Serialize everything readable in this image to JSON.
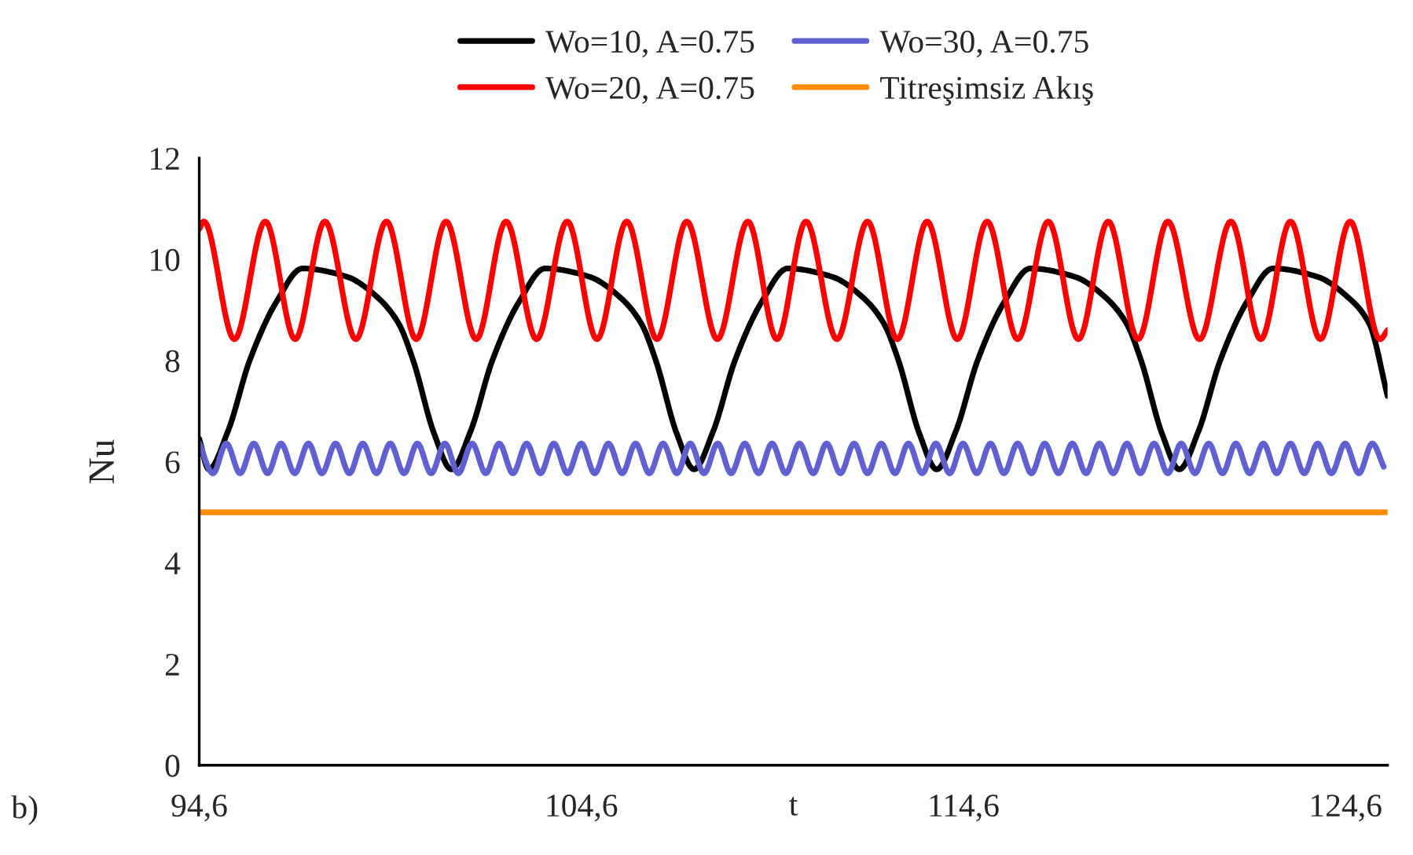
{
  "chart_data": {
    "type": "line",
    "xlabel": "t",
    "ylabel": "Nu",
    "annotations": [
      "b)"
    ],
    "xlim": [
      94.6,
      125.7
    ],
    "xticks": [
      {
        "value": 94.6,
        "label": "94,6"
      },
      {
        "value": 104.6,
        "label": "104,6"
      },
      {
        "value": 114.6,
        "label": "114,6"
      },
      {
        "value": 124.6,
        "label": "124,6"
      }
    ],
    "ylim": [
      0,
      12
    ],
    "yticks": [
      0,
      2,
      4,
      6,
      8,
      10,
      12
    ],
    "grid": false,
    "legend": "top",
    "marker": "none",
    "line_style": "solid",
    "series": [
      {
        "name": "Wo=10, A=0.75",
        "color": "#000000",
        "x": [
          94.6,
          94.85,
          95.35,
          95.92,
          96.62,
          97.3,
          98.45,
          99.25,
          99.82,
          100.2,
          100.75,
          101.2,
          101.7,
          102.27,
          102.97,
          103.65,
          104.8,
          105.6,
          106.17,
          106.55,
          107.1,
          107.55,
          108.05,
          108.62,
          109.32,
          110.0,
          111.15,
          111.95,
          112.52,
          112.9,
          113.45,
          113.9,
          114.4,
          114.97,
          115.67,
          116.35,
          117.5,
          118.3,
          118.87,
          119.25,
          119.8,
          120.25,
          120.75,
          121.32,
          122.02,
          122.7,
          123.85,
          124.65,
          125.22,
          125.7
        ],
        "values": [
          6.45,
          5.85,
          6.6,
          8.0,
          9.16,
          9.82,
          9.66,
          9.26,
          8.73,
          8.0,
          6.55,
          5.85,
          6.6,
          8.0,
          9.16,
          9.82,
          9.66,
          9.26,
          8.73,
          8.0,
          6.55,
          5.85,
          6.6,
          8.0,
          9.16,
          9.82,
          9.66,
          9.26,
          8.73,
          8.0,
          6.55,
          5.85,
          6.6,
          8.0,
          9.16,
          9.82,
          9.66,
          9.26,
          8.73,
          8.0,
          6.55,
          5.85,
          6.6,
          8.0,
          9.16,
          9.82,
          9.66,
          9.26,
          8.73,
          7.3
        ]
      },
      {
        "name": "Wo=20, A=0.75",
        "color": "#ff0000",
        "x": [
          94.6,
          94.72,
          95.52,
          96.33,
          97.11,
          97.89,
          98.7,
          99.5,
          100.28,
          101.06,
          101.85,
          102.63,
          103.43,
          104.23,
          105.01,
          105.79,
          106.58,
          107.36,
          108.16,
          108.96,
          109.72,
          110.48,
          111.29,
          112.09,
          112.87,
          113.65,
          114.44,
          115.22,
          116.02,
          116.82,
          117.61,
          118.39,
          119.17,
          119.95,
          120.78,
          121.6,
          122.38,
          123.16,
          123.94,
          124.72,
          125.5,
          125.7
        ],
        "values": [
          10.6,
          10.75,
          8.42,
          10.75,
          8.42,
          10.75,
          8.42,
          10.75,
          8.42,
          10.75,
          8.42,
          10.75,
          8.42,
          10.75,
          8.42,
          10.75,
          8.42,
          10.75,
          8.42,
          10.75,
          8.42,
          10.75,
          8.42,
          10.75,
          8.42,
          10.75,
          8.42,
          10.75,
          8.42,
          10.75,
          8.42,
          10.75,
          8.42,
          10.75,
          8.42,
          10.75,
          8.42,
          10.75,
          8.42,
          10.75,
          8.42,
          8.6
        ]
      },
      {
        "name": "Wo=30, A=0.75",
        "color": "#6060d0",
        "x": [
          94.6,
          94.96,
          95.31,
          95.67,
          96.03,
          96.39,
          96.74,
          97.1,
          97.46,
          97.81,
          98.17,
          98.53,
          98.88,
          99.24,
          99.6,
          99.96,
          100.31,
          100.67,
          101.03,
          101.38,
          101.74,
          102.1,
          102.45,
          102.81,
          103.17,
          103.53,
          103.88,
          104.24,
          104.6,
          104.95,
          105.31,
          105.67,
          106.02,
          106.38,
          106.74,
          107.1,
          107.45,
          107.81,
          108.17,
          108.52,
          108.88,
          109.24,
          109.59,
          109.95,
          110.31,
          110.67,
          111.02,
          111.38,
          111.74,
          112.09,
          112.45,
          112.81,
          113.16,
          113.52,
          113.88,
          114.24,
          114.59,
          114.95,
          115.31,
          115.66,
          116.02,
          116.38,
          116.73,
          117.09,
          117.45,
          117.81,
          118.16,
          118.52,
          118.88,
          119.23,
          119.59,
          119.95,
          120.3,
          120.66,
          121.02,
          121.38,
          121.73,
          122.09,
          122.45,
          122.8,
          123.16,
          123.52,
          123.87,
          124.23,
          124.59,
          124.95,
          125.3,
          125.6
        ],
        "values": [
          6.36,
          5.77,
          6.36,
          5.77,
          6.36,
          5.77,
          6.36,
          5.77,
          6.36,
          5.77,
          6.36,
          5.77,
          6.36,
          5.77,
          6.36,
          5.77,
          6.36,
          5.77,
          6.36,
          5.77,
          6.36,
          5.77,
          6.36,
          5.77,
          6.36,
          5.77,
          6.36,
          5.77,
          6.36,
          5.77,
          6.36,
          5.77,
          6.36,
          5.77,
          6.36,
          5.77,
          6.36,
          5.77,
          6.36,
          5.77,
          6.36,
          5.77,
          6.36,
          5.77,
          6.36,
          5.77,
          6.36,
          5.77,
          6.36,
          5.77,
          6.36,
          5.77,
          6.36,
          5.77,
          6.36,
          5.77,
          6.36,
          5.77,
          6.36,
          5.77,
          6.36,
          5.77,
          6.36,
          5.77,
          6.36,
          5.77,
          6.36,
          5.77,
          6.36,
          5.77,
          6.36,
          5.77,
          6.36,
          5.77,
          6.36,
          5.77,
          6.36,
          5.77,
          6.36,
          5.77,
          6.36,
          5.77,
          6.36,
          5.77,
          6.36,
          5.77,
          6.36,
          5.9
        ]
      },
      {
        "name": "Titreşimsiz Akış",
        "color": "#ff8c00",
        "x": [
          94.6,
          125.7
        ],
        "values": [
          5,
          5
        ]
      }
    ]
  }
}
